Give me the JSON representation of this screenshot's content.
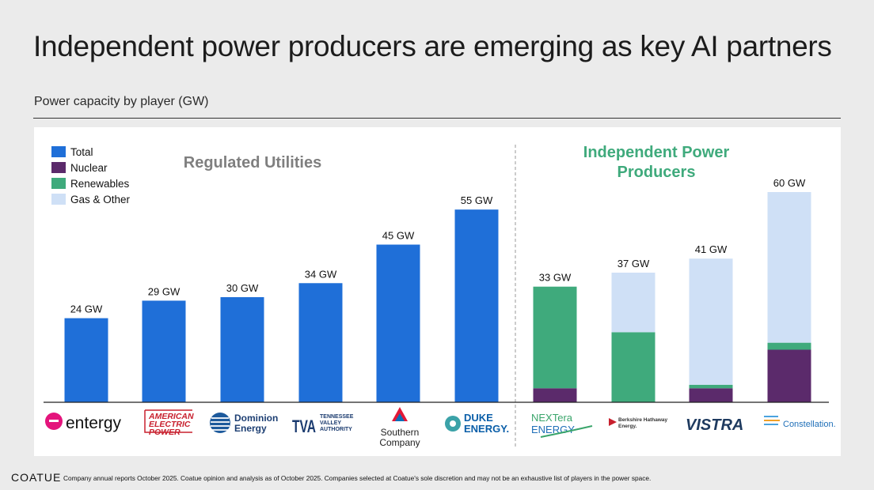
{
  "title": "Independent power producers are emerging as key AI partners",
  "subtitle": "Power capacity by player (GW)",
  "footer": {
    "brand": "COATUE",
    "note": "Company annual reports October 2025.  Coatue opinion and analysis as of October 2025.  Companies selected at Coatue's sole discretion and may not be an exhaustive list of players in the power space."
  },
  "colors": {
    "total": "#1f6fd8",
    "nuclear": "#5b2a6b",
    "renewables": "#3faa7c",
    "gas_other": "#cfe0f6"
  },
  "group_labels": {
    "regulated": "Regulated Utilities",
    "ipp_line1": "Independent Power",
    "ipp_line2": "Producers"
  },
  "logos": [
    {
      "name": "entergy",
      "text": "entergy"
    },
    {
      "name": "aep",
      "text1": "AMERICAN",
      "text2": "ELECTRIC",
      "text3": "POWER"
    },
    {
      "name": "dominion",
      "text1": "Dominion",
      "text2": "Energy"
    },
    {
      "name": "tva",
      "text": "TVA",
      "text1": "TENNESSEE",
      "text2": "VALLEY",
      "text3": "AUTHORITY"
    },
    {
      "name": "southern",
      "text1": "Southern",
      "text2": "Company"
    },
    {
      "name": "duke",
      "text1": "DUKE",
      "text2": "ENERGY."
    },
    {
      "name": "nextera",
      "text1": "NEXTera",
      "text2": "ENERGY"
    },
    {
      "name": "berkshire",
      "text1": "Berkshire Hathaway",
      "text2": "Energy."
    },
    {
      "name": "vistra",
      "text": "VISTRA"
    },
    {
      "name": "constellation",
      "text": "Constellation."
    }
  ],
  "chart_data": {
    "type": "bar",
    "stacked": true,
    "units": "GW",
    "legend": [
      "Total",
      "Nuclear",
      "Renewables",
      "Gas & Other"
    ],
    "legend_position": "top-left",
    "categories": [
      "Entergy",
      "American Electric Power",
      "Dominion Energy",
      "TVA",
      "Southern Company",
      "Duke Energy",
      "NextEra Energy",
      "Berkshire Hathaway Energy",
      "Vistra",
      "Constellation"
    ],
    "labels": [
      "24 GW",
      "29 GW",
      "30 GW",
      "34 GW",
      "45 GW",
      "55 GW",
      "33 GW",
      "37 GW",
      "41 GW",
      "60 GW"
    ],
    "series": [
      {
        "name": "Total",
        "values": [
          24,
          29,
          30,
          34,
          45,
          55,
          0,
          0,
          0,
          0
        ]
      },
      {
        "name": "Nuclear",
        "values": [
          0,
          0,
          0,
          0,
          0,
          0,
          4,
          0,
          4,
          15
        ]
      },
      {
        "name": "Renewables",
        "values": [
          0,
          0,
          0,
          0,
          0,
          0,
          29,
          20,
          1,
          2
        ]
      },
      {
        "name": "Gas & Other",
        "values": [
          0,
          0,
          0,
          0,
          0,
          0,
          0,
          17,
          36,
          43
        ]
      }
    ],
    "ylim": [
      0,
      60
    ],
    "grid": false
  }
}
